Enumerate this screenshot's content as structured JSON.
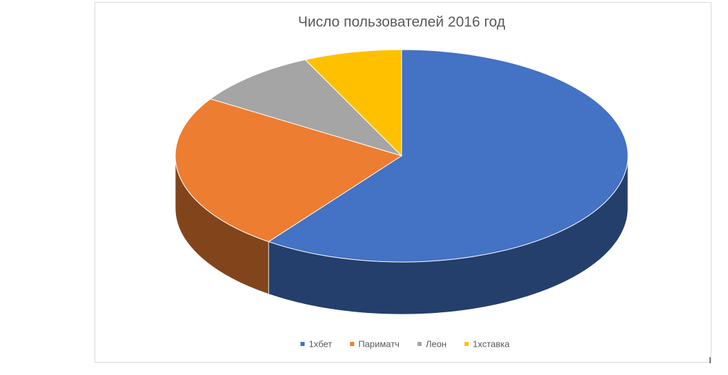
{
  "chart_data": {
    "type": "pie",
    "title": "Число пользователей 2016 год",
    "categories": [
      "1xбет",
      "Париматч",
      "Леон",
      "1xставка"
    ],
    "values": [
      60,
      24,
      9,
      7
    ],
    "colors": [
      "#4472c4",
      "#ed7d31",
      "#a5a5a5",
      "#ffc000"
    ],
    "legend": "bottom"
  }
}
